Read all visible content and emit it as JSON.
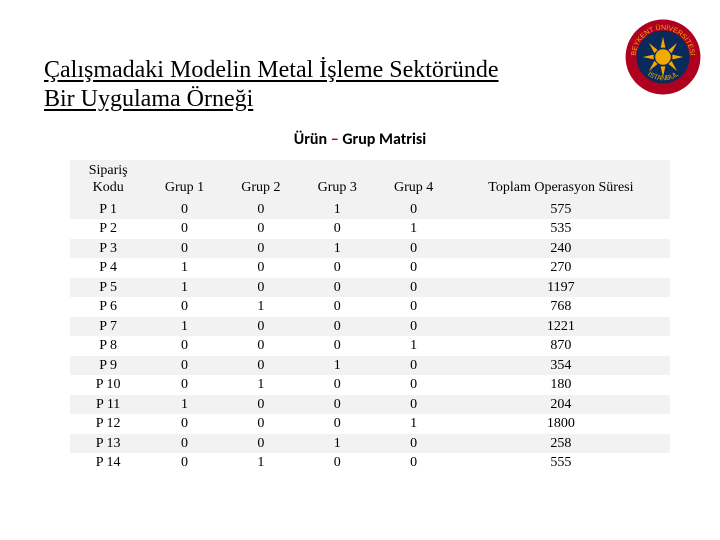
{
  "title_line1": "Çalışmadaki Modelin Metal İşleme Sektöründe",
  "title_line2": "Bir Uygulama Örneği",
  "subtitle_left": "Ürün ",
  "subtitle_dash": "– ",
  "subtitle_right": "Grup Matrisi",
  "logo": {
    "ring_color": "#b00020",
    "inner_color": "#0a2a5c",
    "sun_color": "#f2a900",
    "text_color": "#f2a900"
  },
  "table": {
    "headers": {
      "c0a": "Sipariş",
      "c0b": "Kodu",
      "c1": "Grup 1",
      "c2": "Grup 2",
      "c3": "Grup 3",
      "c4": "Grup 4",
      "c5": "Toplam Operasyon Süresi"
    },
    "rows": [
      {
        "code": "P 1",
        "g1": "0",
        "g2": "0",
        "g3": "1",
        "g4": "0",
        "tot": "575"
      },
      {
        "code": "P 2",
        "g1": "0",
        "g2": "0",
        "g3": "0",
        "g4": "1",
        "tot": "535"
      },
      {
        "code": "P 3",
        "g1": "0",
        "g2": "0",
        "g3": "1",
        "g4": "0",
        "tot": "240"
      },
      {
        "code": "P 4",
        "g1": "1",
        "g2": "0",
        "g3": "0",
        "g4": "0",
        "tot": "270"
      },
      {
        "code": "P 5",
        "g1": "1",
        "g2": "0",
        "g3": "0",
        "g4": "0",
        "tot": "1197"
      },
      {
        "code": "P 6",
        "g1": "0",
        "g2": "1",
        "g3": "0",
        "g4": "0",
        "tot": "768"
      },
      {
        "code": "P 7",
        "g1": "1",
        "g2": "0",
        "g3": "0",
        "g4": "0",
        "tot": "1221"
      },
      {
        "code": "P 8",
        "g1": "0",
        "g2": "0",
        "g3": "0",
        "g4": "1",
        "tot": "870"
      },
      {
        "code": "P 9",
        "g1": "0",
        "g2": "0",
        "g3": "1",
        "g4": "0",
        "tot": "354"
      },
      {
        "code": "P 10",
        "g1": "0",
        "g2": "1",
        "g3": "0",
        "g4": "0",
        "tot": "180"
      },
      {
        "code": "P 11",
        "g1": "1",
        "g2": "0",
        "g3": "0",
        "g4": "0",
        "tot": "204"
      },
      {
        "code": "P 12",
        "g1": "0",
        "g2": "0",
        "g3": "0",
        "g4": "1",
        "tot": "1800"
      },
      {
        "code": "P 13",
        "g1": "0",
        "g2": "0",
        "g3": "1",
        "g4": "0",
        "tot": "258"
      },
      {
        "code": "P 14",
        "g1": "0",
        "g2": "1",
        "g3": "0",
        "g4": "0",
        "tot": "555"
      }
    ]
  }
}
